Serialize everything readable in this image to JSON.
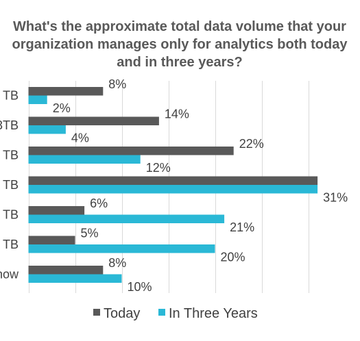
{
  "chart_data": {
    "type": "bar",
    "orientation": "horizontal",
    "title": "What's the approximate total data volume that your organization manages only for analytics both today and in three years?",
    "title_lines": [
      "What's the approximate total data volume that your",
      "organization manages only for analytics both today",
      "and in three years?"
    ],
    "categories": [
      " TB",
      "3TB",
      " TB",
      " TB",
      " TB",
      " TB",
      "now"
    ],
    "series": [
      {
        "name": "Today",
        "color": "#595959",
        "values": [
          8,
          14,
          22,
          31,
          6,
          5,
          8
        ],
        "labels": [
          "8%",
          "14%",
          "22%",
          "",
          "6%",
          "5%",
          "8%"
        ]
      },
      {
        "name": "In Three Years",
        "color": "#2ab8d6",
        "values": [
          2,
          4,
          12,
          31,
          21,
          20,
          10
        ],
        "labels": [
          "2%",
          "4%",
          "12%",
          "31%",
          "21%",
          "20%",
          "10%"
        ]
      }
    ],
    "xlim": [
      -3,
      31
    ],
    "grid": true,
    "legend_position": "bottom"
  }
}
